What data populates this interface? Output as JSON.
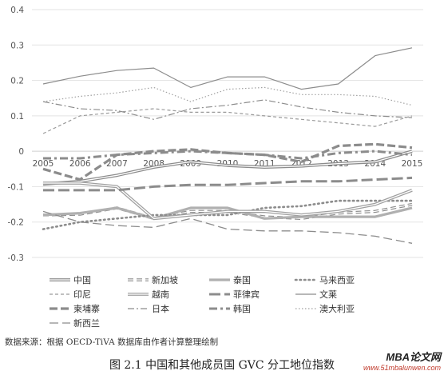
{
  "chart_data": {
    "type": "line",
    "title": "",
    "xlabel": "",
    "ylabel": "",
    "x": [
      2005,
      2006,
      2007,
      2008,
      2009,
      2010,
      2011,
      2012,
      2013,
      2014,
      2015
    ],
    "ylim": [
      -0.3,
      0.4
    ],
    "yticks": [
      "0.4",
      "0.3",
      "0.2",
      "0.1",
      "0",
      "-0.1",
      "-0.2",
      "-0.3"
    ],
    "grid": true,
    "legend_position": "bottom",
    "series": [
      {
        "name": "中国",
        "style": "double",
        "color": "#8c8c8c",
        "values": [
          -0.093,
          -0.085,
          -0.068,
          -0.045,
          -0.03,
          -0.04,
          -0.045,
          -0.042,
          -0.035,
          -0.03,
          0.0
        ]
      },
      {
        "name": "新加坡",
        "style": "double-dash",
        "color": "#8c8c8c",
        "values": [
          -0.18,
          -0.178,
          -0.16,
          -0.19,
          -0.17,
          -0.17,
          -0.185,
          -0.19,
          -0.175,
          -0.17,
          -0.15
        ]
      },
      {
        "name": "泰国",
        "style": "thick",
        "color": "#b0b0b0",
        "values": [
          -0.18,
          -0.175,
          -0.16,
          -0.19,
          -0.16,
          -0.16,
          -0.19,
          -0.185,
          -0.185,
          -0.185,
          -0.16
        ]
      },
      {
        "name": "马来西亚",
        "style": "dotted",
        "color": "#8c8c8c",
        "values": [
          -0.22,
          -0.2,
          -0.19,
          -0.18,
          -0.18,
          -0.18,
          -0.16,
          -0.155,
          -0.14,
          -0.14,
          -0.14
        ]
      },
      {
        "name": "印尼",
        "style": "dash",
        "color": "#9a9a9a",
        "values": [
          0.05,
          0.1,
          0.11,
          0.12,
          0.11,
          0.11,
          0.1,
          0.09,
          0.08,
          0.07,
          0.1
        ]
      },
      {
        "name": "越南",
        "style": "double",
        "color": "#a0a0a0",
        "values": [
          -0.09,
          -0.09,
          -0.1,
          -0.19,
          -0.18,
          -0.17,
          -0.17,
          -0.18,
          -0.17,
          -0.15,
          -0.11
        ]
      },
      {
        "name": "菲律宾",
        "style": "long-dash-thick",
        "color": "#8c8c8c",
        "values": [
          -0.11,
          -0.11,
          -0.11,
          -0.1,
          -0.095,
          -0.095,
          -0.09,
          -0.085,
          -0.085,
          -0.08,
          -0.075
        ]
      },
      {
        "name": "文莱",
        "style": "solid",
        "color": "#8c8c8c",
        "values": [
          0.19,
          0.212,
          0.228,
          0.235,
          0.18,
          0.21,
          0.21,
          0.175,
          0.19,
          0.27,
          0.292
        ]
      },
      {
        "name": "柬埔寨",
        "style": "dash-thick",
        "color": "#8c8c8c",
        "values": [
          -0.05,
          -0.08,
          -0.01,
          0.0,
          0.005,
          -0.005,
          -0.01,
          -0.03,
          0.015,
          0.02,
          0.01
        ]
      },
      {
        "name": "日本",
        "style": "dash-dot",
        "color": "#8c8c8c",
        "values": [
          0.14,
          0.12,
          0.115,
          0.09,
          0.12,
          0.13,
          0.145,
          0.125,
          0.11,
          0.1,
          0.095
        ]
      },
      {
        "name": "韩国",
        "style": "dash-dot-thick",
        "color": "#8c8c8c",
        "values": [
          -0.02,
          -0.02,
          -0.01,
          -0.005,
          0.0,
          -0.005,
          -0.01,
          -0.02,
          -0.005,
          0.0,
          -0.01
        ]
      },
      {
        "name": "澳大利亚",
        "style": "dotted-fine",
        "color": "#a0a0a0",
        "values": [
          0.14,
          0.155,
          0.165,
          0.18,
          0.14,
          0.175,
          0.18,
          0.16,
          0.16,
          0.155,
          0.13
        ]
      },
      {
        "name": "新西兰",
        "style": "long-dash",
        "color": "#8c8c8c",
        "values": [
          -0.17,
          -0.2,
          -0.21,
          -0.215,
          -0.19,
          -0.22,
          -0.225,
          -0.225,
          -0.23,
          -0.24,
          -0.26
        ]
      }
    ]
  },
  "source_note": "数据来源：根据 OECD-TiVA 数据库由作者计算整理绘制",
  "caption": "图 2.1    中国和其他成员国 GVC 分工地位指数",
  "watermark": {
    "title": "MBA论文网",
    "url": "www.51mbalunwen.com"
  }
}
